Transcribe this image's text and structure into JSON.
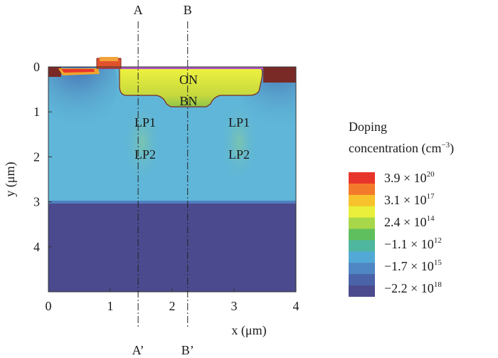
{
  "chart_data": {
    "type": "heatmap",
    "title": "",
    "xlabel": "x (μm)",
    "ylabel": "y (μm)",
    "xlim": [
      0,
      4
    ],
    "ylim": [
      0,
      5
    ],
    "y_inverted": true,
    "x_ticks": [
      "0",
      "1",
      "2",
      "3",
      "4"
    ],
    "y_ticks": [
      "0",
      "1",
      "2",
      "3",
      "4"
    ],
    "region_labels": [
      "ON",
      "BN",
      "LP1",
      "LP2",
      "LP1",
      "LP2"
    ],
    "cutlines": [
      {
        "top": "A",
        "bottom": "A’",
        "x": 1.45
      },
      {
        "top": "B",
        "bottom": "B’",
        "x": 2.25
      }
    ],
    "colorbar": {
      "title_line1": "Doping",
      "title_line2": "concentration (cm",
      "title_exp": "−3",
      "labels": [
        {
          "mantissa": "3.9 × 10",
          "exp": "20"
        },
        {
          "mantissa": "3.1 × 10",
          "exp": "17"
        },
        {
          "mantissa": "2.4 × 10",
          "exp": "14"
        },
        {
          "mantissa": "−1.1 × 10",
          "exp": "12"
        },
        {
          "mantissa": "−1.7 × 10",
          "exp": "15"
        },
        {
          "mantissa": "−2.2 × 10",
          "exp": "18"
        }
      ],
      "colors": [
        "#e8352b",
        "#f47a2b",
        "#f7c22c",
        "#e9ef3a",
        "#a8d84a",
        "#5fbf5e",
        "#4fb6a0",
        "#52a9d6",
        "#4f86c4",
        "#4a62a8",
        "#4b4a8e"
      ]
    },
    "regions": [
      {
        "name": "substrate",
        "color": "#4b4a8e"
      },
      {
        "name": "epi",
        "color": "#5fb6d8"
      },
      {
        "name": "deep-well",
        "color": "#4a6cb0"
      },
      {
        "name": "buried-n",
        "color": "#c6d83e"
      },
      {
        "name": "source-drain",
        "color": "#7a2a26"
      },
      {
        "name": "gate",
        "color": "#e0522c"
      }
    ]
  }
}
